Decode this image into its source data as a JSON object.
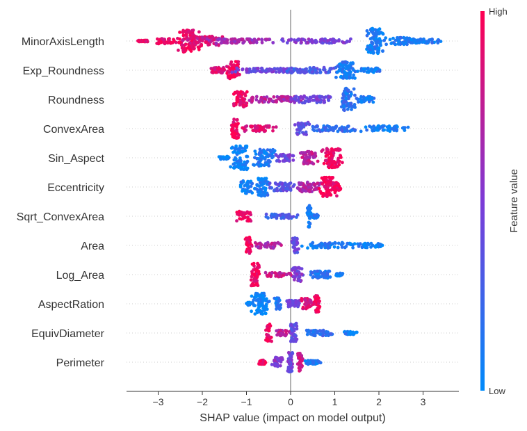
{
  "chart_data": {
    "type": "scatter",
    "subtype": "shap-beeswarm",
    "title": "",
    "xlabel": "SHAP value (impact on model output)",
    "xlim": [
      -3.7,
      3.85
    ],
    "xticks": [
      -3,
      -2,
      -1,
      0,
      1,
      2,
      3
    ],
    "features": [
      {
        "name": "MinorAxisLength",
        "clusters": [
          {
            "x": -2.3,
            "w": 0.3,
            "hh": 16,
            "c": 0.95
          },
          {
            "x": -2.0,
            "w": 0.55,
            "hh": 7,
            "c": 0.85
          },
          {
            "x": -2.8,
            "w": 0.35,
            "hh": 4,
            "c": 0.95
          },
          {
            "x": -1.2,
            "w": 1.0,
            "hh": 3,
            "c": 0.65
          },
          {
            "x": 0.6,
            "w": 1.0,
            "hh": 3,
            "c": 0.5
          },
          {
            "x": 1.9,
            "w": 0.25,
            "hh": 18,
            "c": 0.08
          },
          {
            "x": 2.45,
            "w": 0.4,
            "hh": 5,
            "c": 0.1
          },
          {
            "x": 3.05,
            "w": 0.45,
            "hh": 3,
            "c": 0.1
          },
          {
            "x": -3.35,
            "w": 0.15,
            "hh": 1,
            "c": 0.95
          }
        ]
      },
      {
        "name": "Exp_Roundness",
        "clusters": [
          {
            "x": -1.3,
            "w": 0.2,
            "hh": 13,
            "c": 0.95
          },
          {
            "x": -1.65,
            "w": 0.25,
            "hh": 4,
            "c": 0.85
          },
          {
            "x": -0.6,
            "w": 0.9,
            "hh": 3,
            "c": 0.45
          },
          {
            "x": 0.6,
            "w": 0.9,
            "hh": 4,
            "c": 0.3
          },
          {
            "x": 1.25,
            "w": 0.3,
            "hh": 12,
            "c": 0.12
          },
          {
            "x": 1.8,
            "w": 0.35,
            "hh": 3,
            "c": 0.1
          }
        ]
      },
      {
        "name": "Roundness",
        "clusters": [
          {
            "x": -1.15,
            "w": 0.2,
            "hh": 12,
            "c": 0.95
          },
          {
            "x": -0.4,
            "w": 0.8,
            "hh": 4,
            "c": 0.7
          },
          {
            "x": 0.5,
            "w": 0.6,
            "hh": 5,
            "c": 0.45
          },
          {
            "x": 1.3,
            "w": 0.22,
            "hh": 16,
            "c": 0.15
          },
          {
            "x": 1.7,
            "w": 0.25,
            "hh": 4,
            "c": 0.12
          }
        ]
      },
      {
        "name": "ConvexArea",
        "clusters": [
          {
            "x": -1.25,
            "w": 0.1,
            "hh": 14,
            "c": 0.95
          },
          {
            "x": -0.7,
            "w": 0.5,
            "hh": 4,
            "c": 0.85
          },
          {
            "x": 0.25,
            "w": 0.2,
            "hh": 9,
            "c": 0.4
          },
          {
            "x": 1.0,
            "w": 0.8,
            "hh": 4,
            "c": 0.2
          },
          {
            "x": 2.2,
            "w": 0.6,
            "hh": 4,
            "c": 0.08
          }
        ]
      },
      {
        "name": "Sin_Aspect",
        "clusters": [
          {
            "x": -1.15,
            "w": 0.25,
            "hh": 17,
            "c": 0.05
          },
          {
            "x": -0.6,
            "w": 0.3,
            "hh": 12,
            "c": 0.1
          },
          {
            "x": -0.1,
            "w": 0.3,
            "hh": 5,
            "c": 0.45
          },
          {
            "x": 0.4,
            "w": 0.25,
            "hh": 9,
            "c": 0.75
          },
          {
            "x": 0.95,
            "w": 0.3,
            "hh": 14,
            "c": 0.95
          },
          {
            "x": -1.5,
            "w": 0.15,
            "hh": 2,
            "c": 0.05
          }
        ]
      },
      {
        "name": "Eccentricity",
        "clusters": [
          {
            "x": -1.0,
            "w": 0.2,
            "hh": 9,
            "c": 0.08
          },
          {
            "x": -0.65,
            "w": 0.2,
            "hh": 13,
            "c": 0.1
          },
          {
            "x": -0.2,
            "w": 0.4,
            "hh": 6,
            "c": 0.35
          },
          {
            "x": 0.45,
            "w": 0.4,
            "hh": 7,
            "c": 0.7
          },
          {
            "x": 0.85,
            "w": 0.25,
            "hh": 14,
            "c": 0.95
          },
          {
            "x": 1.05,
            "w": 0.12,
            "hh": 5,
            "c": 0.95
          }
        ]
      },
      {
        "name": "Sqrt_ConvexArea",
        "clusters": [
          {
            "x": -1.05,
            "w": 0.25,
            "hh": 7,
            "c": 0.95
          },
          {
            "x": -0.2,
            "w": 0.45,
            "hh": 3,
            "c": 0.3
          },
          {
            "x": 0.42,
            "w": 0.06,
            "hh": 16,
            "c": 0.1
          },
          {
            "x": 0.55,
            "w": 0.1,
            "hh": 3,
            "c": 0.1
          }
        ]
      },
      {
        "name": "Area",
        "clusters": [
          {
            "x": -0.95,
            "w": 0.1,
            "hh": 12,
            "c": 0.95
          },
          {
            "x": -0.5,
            "w": 0.4,
            "hh": 4,
            "c": 0.7
          },
          {
            "x": 0.1,
            "w": 0.1,
            "hh": 11,
            "c": 0.4
          },
          {
            "x": 0.9,
            "w": 0.8,
            "hh": 4,
            "c": 0.1
          },
          {
            "x": 1.8,
            "w": 0.35,
            "hh": 3,
            "c": 0.05
          }
        ]
      },
      {
        "name": "Log_Area",
        "clusters": [
          {
            "x": -0.8,
            "w": 0.12,
            "hh": 17,
            "c": 0.95
          },
          {
            "x": -0.3,
            "w": 0.4,
            "hh": 3,
            "c": 0.8
          },
          {
            "x": 0.15,
            "w": 0.15,
            "hh": 10,
            "c": 0.5
          },
          {
            "x": 0.7,
            "w": 0.35,
            "hh": 5,
            "c": 0.15
          },
          {
            "x": 1.1,
            "w": 0.1,
            "hh": 2,
            "c": 0.1
          }
        ]
      },
      {
        "name": "AspectRation",
        "clusters": [
          {
            "x": -0.7,
            "w": 0.25,
            "hh": 15,
            "c": 0.05
          },
          {
            "x": -0.3,
            "w": 0.1,
            "hh": 9,
            "c": 0.1
          },
          {
            "x": 0.05,
            "w": 0.2,
            "hh": 5,
            "c": 0.45
          },
          {
            "x": 0.4,
            "w": 0.2,
            "hh": 8,
            "c": 0.85
          },
          {
            "x": 0.6,
            "w": 0.08,
            "hh": 12,
            "c": 0.95
          },
          {
            "x": -0.95,
            "w": 0.08,
            "hh": 2,
            "c": 0.05
          }
        ]
      },
      {
        "name": "EquivDiameter",
        "clusters": [
          {
            "x": -0.5,
            "w": 0.08,
            "hh": 13,
            "c": 0.95
          },
          {
            "x": -0.15,
            "w": 0.25,
            "hh": 4,
            "c": 0.75
          },
          {
            "x": 0.08,
            "w": 0.1,
            "hh": 14,
            "c": 0.4
          },
          {
            "x": 0.6,
            "w": 0.5,
            "hh": 4,
            "c": 0.2
          },
          {
            "x": 1.35,
            "w": 0.2,
            "hh": 2,
            "c": 0.08
          }
        ]
      },
      {
        "name": "Perimeter",
        "clusters": [
          {
            "x": -0.65,
            "w": 0.12,
            "hh": 3,
            "c": 0.95
          },
          {
            "x": -0.3,
            "w": 0.15,
            "hh": 7,
            "c": 0.55
          },
          {
            "x": 0.0,
            "w": 0.1,
            "hh": 14,
            "c": 0.45
          },
          {
            "x": 0.22,
            "w": 0.08,
            "hh": 13,
            "c": 0.8
          },
          {
            "x": 0.5,
            "w": 0.25,
            "hh": 3,
            "c": 0.1
          }
        ]
      }
    ],
    "colorbar": {
      "high_label": "High",
      "low_label": "Low",
      "title": "Feature value",
      "low_color": "#008bfb",
      "high_color": "#ff0052"
    },
    "grid": false,
    "legend": "colorbar-right"
  }
}
